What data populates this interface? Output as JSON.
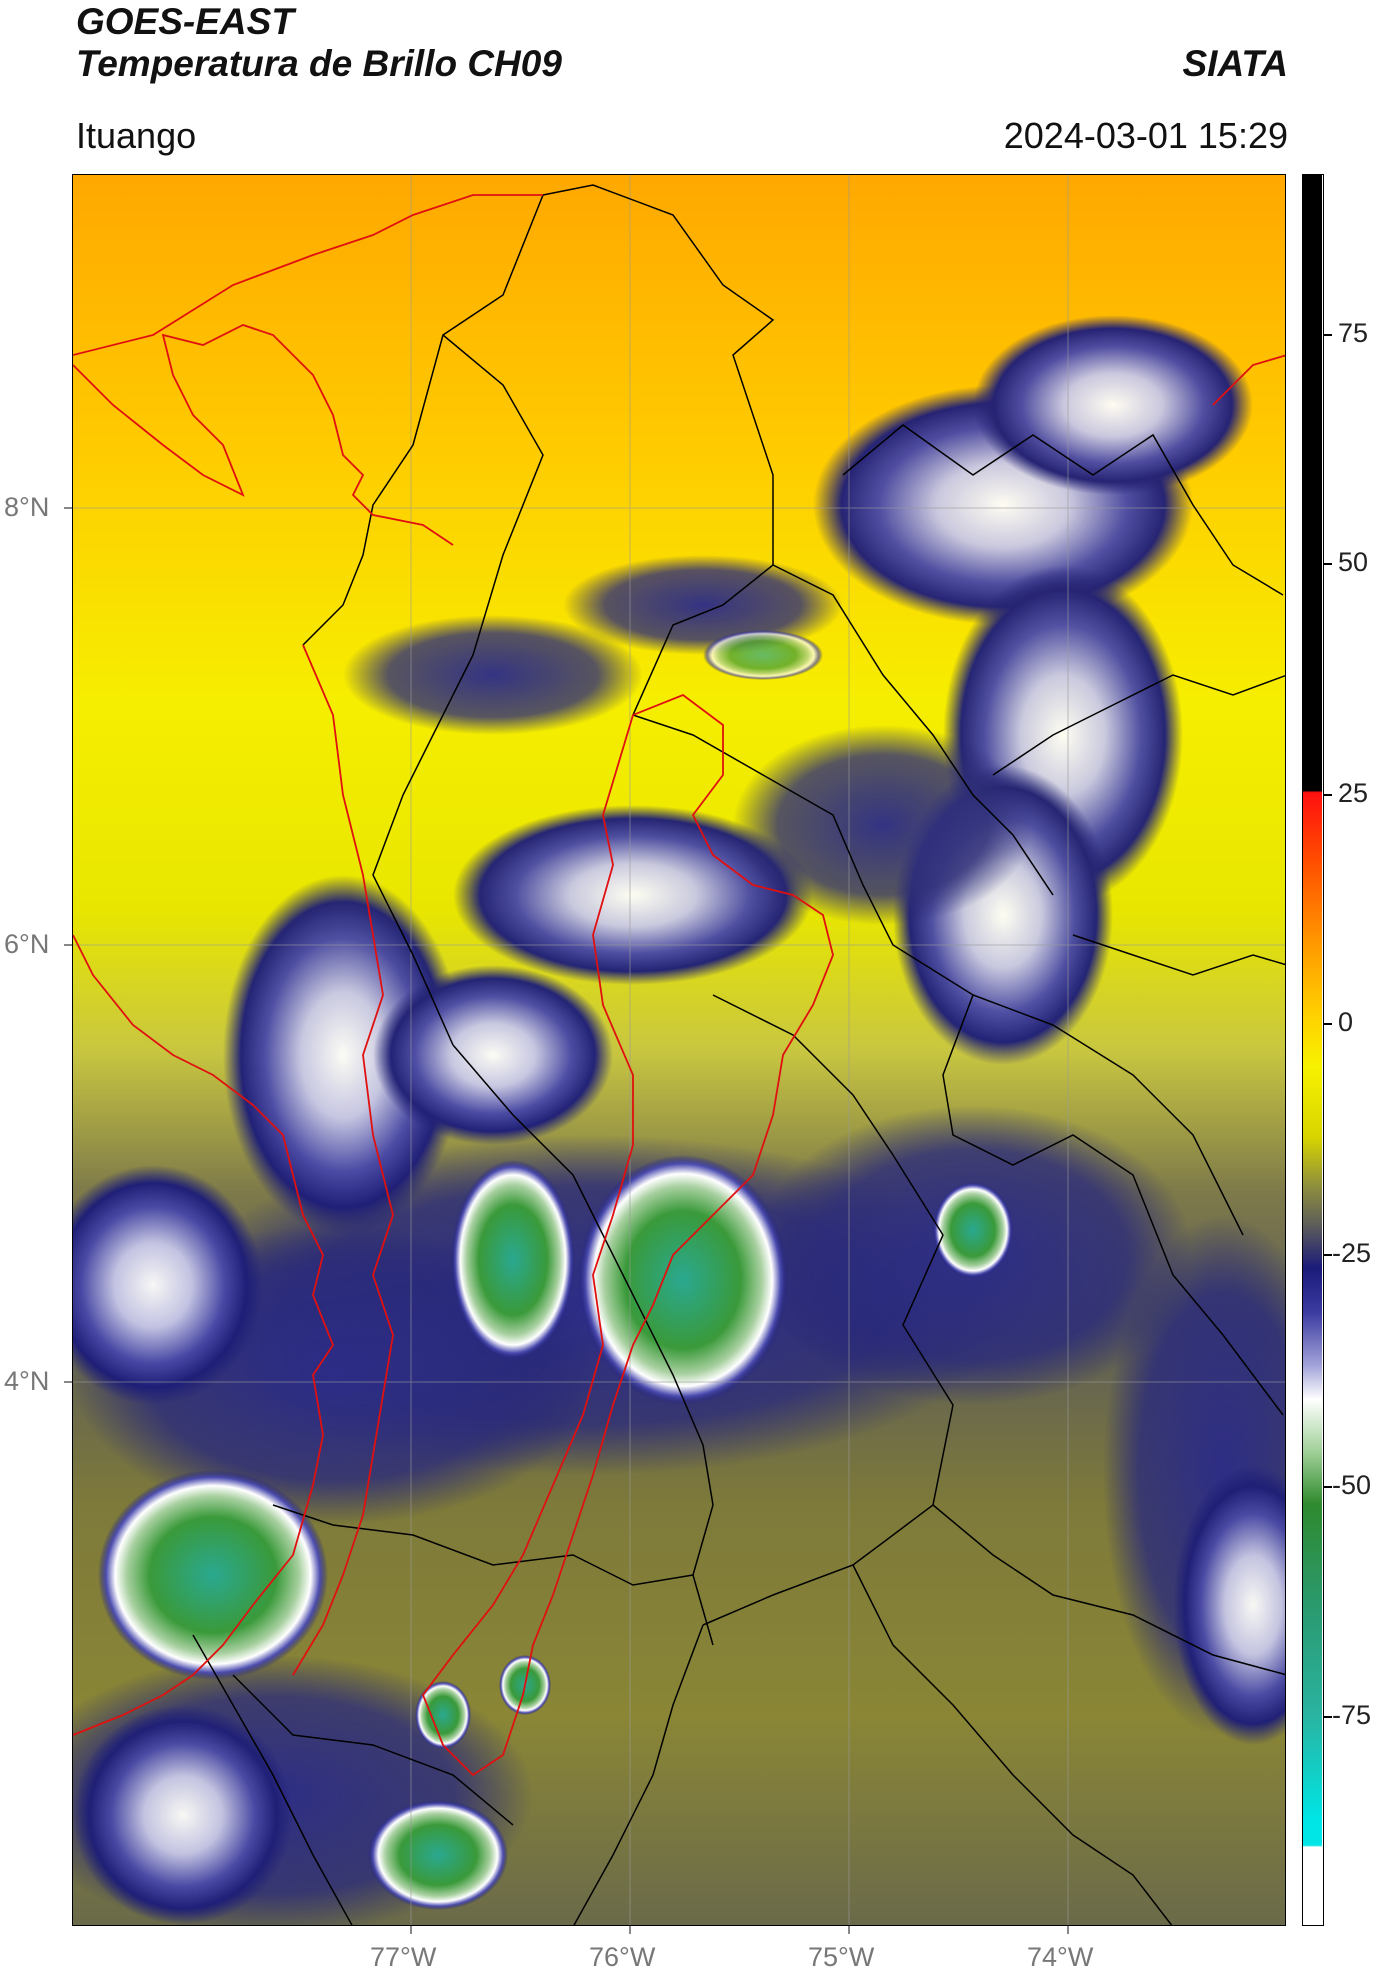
{
  "header": {
    "satellite": "GOES-EAST",
    "product": "Temperatura de Brillo CH09",
    "organization": "SIATA",
    "location": "Ituango",
    "datetime": "2024-03-01 15:29"
  },
  "map": {
    "lat_labels": [
      "8°N",
      "6°N",
      "4°N"
    ],
    "lon_labels": [
      "77°W",
      "76°W",
      "75°W",
      "74°W"
    ],
    "gridlines": true
  },
  "colorbar": {
    "tick_labels": [
      "75",
      "50",
      "25",
      "0",
      "-25",
      "-50",
      "-75"
    ],
    "colors": {
      "warm_top": "#000000",
      "red": "#e01010",
      "orange": "#ff9a00",
      "yellow": "#f7f200",
      "olive": "#8a8a40",
      "navy": "#1b1b7a",
      "white": "#ffffff",
      "green": "#2f8a2f",
      "teal": "#2ab3a0",
      "cyan": "#00e5e5"
    }
  }
}
